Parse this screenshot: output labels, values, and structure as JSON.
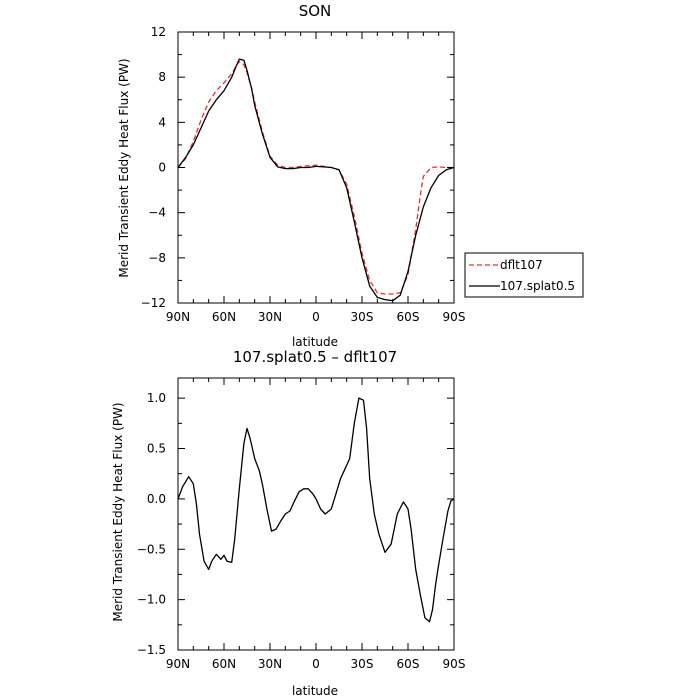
{
  "chart_data": [
    {
      "type": "line",
      "title": "SON",
      "xlabel": "latitude",
      "ylabel": "Merid Transient Eddy Heat Flux (PW)",
      "xticks": [
        "90N",
        "60N",
        "30N",
        "0",
        "30S",
        "60S",
        "90S"
      ],
      "xlim": [
        90,
        -90
      ],
      "ylim": [
        -12,
        12
      ],
      "yticks": [
        "-12",
        "-8",
        "-4",
        "0",
        "4",
        "8",
        "12"
      ],
      "legend": "outside-right",
      "series": [
        {
          "name": "dflt107",
          "color": "#e03030",
          "dash": "dashed",
          "x": [
            90,
            85,
            80,
            75,
            70,
            65,
            60,
            55,
            52,
            50,
            47,
            45,
            42,
            40,
            35,
            30,
            25,
            20,
            15,
            10,
            5,
            0,
            -5,
            -10,
            -15,
            -20,
            -25,
            -30,
            -35,
            -40,
            -45,
            -50,
            -55,
            -60,
            -65,
            -68,
            -70,
            -75,
            -80,
            -85,
            -90
          ],
          "y": [
            0,
            0.8,
            2.3,
            4.2,
            5.8,
            6.8,
            7.5,
            8.3,
            9.0,
            9.4,
            9.1,
            8.4,
            7.0,
            5.8,
            3.2,
            1.0,
            0.2,
            0.0,
            0.0,
            0.1,
            0.15,
            0.2,
            0.1,
            0.0,
            -0.2,
            -1.5,
            -4.3,
            -7.6,
            -10.0,
            -11.1,
            -11.2,
            -11.2,
            -11.1,
            -9.5,
            -5.5,
            -2.5,
            -0.8,
            0.0,
            0.05,
            0.0,
            0.0
          ]
        },
        {
          "name": "107.splat0.5",
          "color": "#000000",
          "dash": "solid",
          "x": [
            90,
            85,
            80,
            75,
            70,
            65,
            60,
            55,
            52,
            50,
            47,
            45,
            42,
            40,
            35,
            30,
            25,
            20,
            15,
            10,
            5,
            0,
            -5,
            -10,
            -15,
            -20,
            -25,
            -30,
            -35,
            -40,
            -45,
            -50,
            -55,
            -60,
            -65,
            -70,
            -75,
            -80,
            -85,
            -90
          ],
          "y": [
            0,
            0.9,
            2.0,
            3.5,
            5.0,
            6.0,
            6.8,
            8.0,
            9.0,
            9.6,
            9.5,
            8.6,
            7.0,
            5.5,
            3.0,
            0.9,
            0.05,
            -0.1,
            -0.1,
            0.0,
            0.0,
            0.1,
            0.05,
            0.0,
            -0.2,
            -1.8,
            -4.8,
            -8.0,
            -10.5,
            -11.5,
            -11.7,
            -11.8,
            -11.3,
            -9.2,
            -6.0,
            -3.5,
            -1.8,
            -0.7,
            -0.2,
            0.0
          ]
        }
      ]
    },
    {
      "type": "line",
      "title": "107.splat0.5 – dflt107",
      "xlabel": "latitude",
      "ylabel": "Merid Transient Eddy Heat Flux (PW)",
      "xticks": [
        "90N",
        "60N",
        "30N",
        "0",
        "30S",
        "60S",
        "90S"
      ],
      "xlim": [
        90,
        -90
      ],
      "ylim": [
        -1.5,
        1.2
      ],
      "yticks": [
        "-1.5",
        "-1.0",
        "-0.5",
        "0.0",
        "0.5",
        "1.0"
      ],
      "series": [
        {
          "color": "#000000",
          "dash": "solid",
          "x": [
            90,
            87,
            83,
            80,
            78,
            76,
            73,
            70,
            68,
            65,
            62,
            60,
            58,
            55,
            53,
            50,
            47,
            45,
            43,
            40,
            37,
            35,
            32,
            29,
            26,
            23,
            20,
            17,
            14,
            11,
            8,
            5,
            2,
            0,
            -3,
            -6,
            -10,
            -13,
            -16,
            -19,
            -22,
            -25,
            -28,
            -31,
            -33,
            -35,
            -38,
            -41,
            -45,
            -49,
            -53,
            -57,
            -60,
            -62,
            -65,
            -68,
            -71,
            -74,
            -76,
            -78,
            -80,
            -83,
            -86,
            -88,
            -90
          ],
          "y": [
            0,
            0.12,
            0.22,
            0.15,
            -0.05,
            -0.35,
            -0.62,
            -0.7,
            -0.62,
            -0.55,
            -0.6,
            -0.56,
            -0.62,
            -0.63,
            -0.4,
            0.1,
            0.55,
            0.7,
            0.6,
            0.4,
            0.28,
            0.15,
            -0.1,
            -0.32,
            -0.3,
            -0.22,
            -0.15,
            -0.12,
            -0.02,
            0.07,
            0.1,
            0.1,
            0.05,
            0.0,
            -0.1,
            -0.15,
            -0.1,
            0.05,
            0.2,
            0.3,
            0.4,
            0.75,
            1.0,
            0.98,
            0.7,
            0.2,
            -0.15,
            -0.35,
            -0.53,
            -0.45,
            -0.15,
            -0.03,
            -0.1,
            -0.3,
            -0.7,
            -0.95,
            -1.18,
            -1.22,
            -1.1,
            -0.85,
            -0.65,
            -0.38,
            -0.12,
            -0.02,
            0
          ]
        }
      ]
    }
  ]
}
